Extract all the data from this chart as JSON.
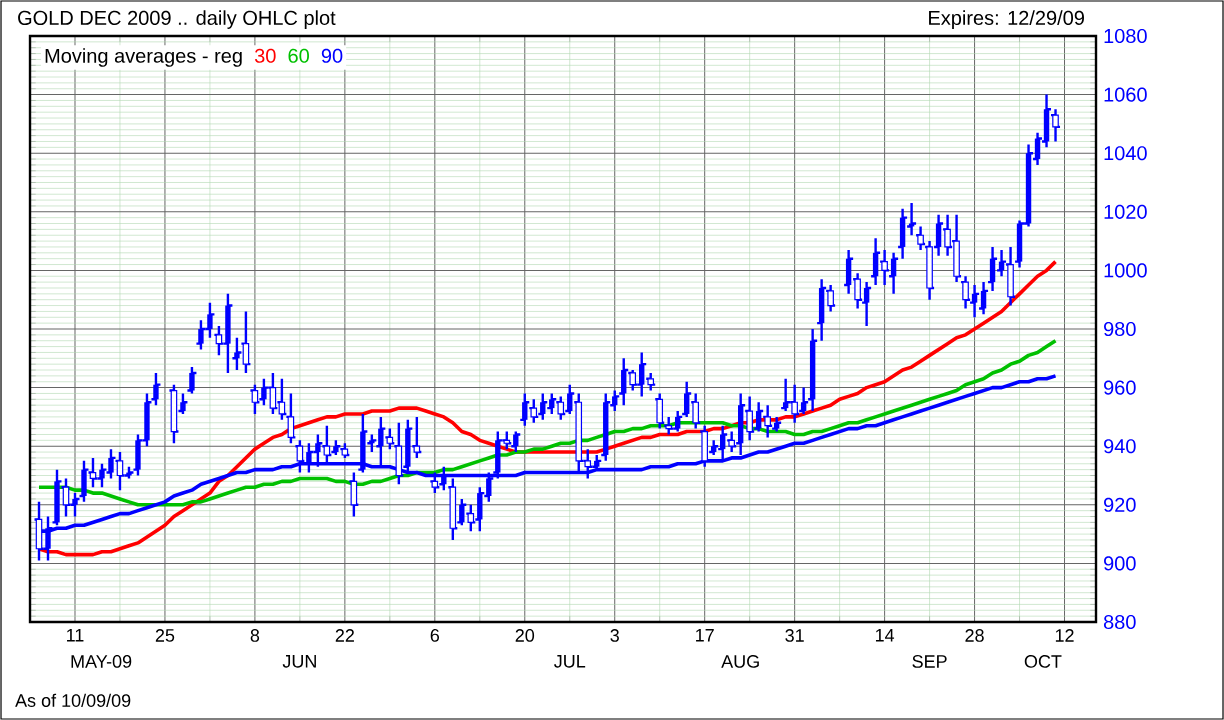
{
  "chart_data": {
    "type": "candlestick",
    "title": "GOLD DEC 2009 .. daily OHLC plot",
    "subtitle": "Expires: 12/29/09",
    "legend_title": "Moving averages - reg",
    "legend": "top left",
    "grid": true,
    "color": "#0000ff",
    "annotations": [
      "MAY-09",
      "JUN",
      "JUL",
      "AUG",
      "SEP",
      "OCT",
      "As of 10/09/09"
    ],
    "ylim": [
      880,
      1080
    ],
    "yticks": [
      880,
      900,
      920,
      940,
      960,
      980,
      1000,
      1020,
      1040,
      1060,
      1080
    ],
    "categories": [
      null,
      null,
      null,
      null,
      "11",
      null,
      null,
      null,
      null,
      null,
      null,
      null,
      null,
      null,
      "25",
      null,
      null,
      null,
      null,
      null,
      null,
      null,
      null,
      null,
      "8",
      null,
      null,
      null,
      null,
      null,
      null,
      null,
      null,
      null,
      "22",
      null,
      null,
      null,
      null,
      null,
      null,
      null,
      null,
      null,
      "6",
      null,
      null,
      null,
      null,
      null,
      null,
      null,
      null,
      null,
      "20",
      null,
      null,
      null,
      null,
      null,
      null,
      null,
      null,
      null,
      "3",
      null,
      null,
      null,
      null,
      null,
      null,
      null,
      null,
      null,
      "17",
      null,
      null,
      null,
      null,
      null,
      null,
      null,
      null,
      null,
      "31",
      null,
      null,
      null,
      null,
      null,
      null,
      null,
      null,
      null,
      "14",
      null,
      null,
      null,
      null,
      null,
      null,
      null,
      null,
      null,
      "28",
      null,
      null,
      null,
      null,
      null,
      null,
      null,
      null,
      null,
      "12"
    ],
    "ohlc": [
      [
        915,
        921,
        901,
        905
      ],
      [
        905,
        916,
        901,
        912
      ],
      [
        914,
        932,
        913,
        928
      ],
      [
        926,
        929,
        916,
        920
      ],
      [
        920,
        924,
        916,
        922
      ],
      [
        923,
        935,
        921,
        932
      ],
      [
        931,
        936,
        926,
        929
      ],
      [
        929,
        934,
        926,
        932
      ],
      [
        931,
        939,
        929,
        936
      ],
      [
        935,
        938,
        925,
        930
      ],
      [
        930,
        933,
        929,
        931
      ],
      [
        932,
        944,
        930,
        942
      ],
      [
        942,
        958,
        940,
        955
      ],
      [
        956,
        965,
        954,
        961
      ],
      null,
      [
        959,
        961,
        941,
        945
      ],
      [
        952,
        958,
        951,
        955
      ],
      [
        959,
        967,
        958,
        965
      ],
      [
        975,
        983,
        973,
        980
      ],
      [
        980,
        989,
        977,
        985
      ],
      [
        978,
        981,
        971,
        975
      ],
      [
        975,
        992,
        965,
        988
      ],
      [
        970,
        977,
        966,
        972
      ],
      [
        975,
        986,
        965,
        968
      ],
      [
        959,
        961,
        951,
        955
      ],
      [
        956,
        963,
        954,
        960
      ],
      [
        960,
        965,
        951,
        953
      ],
      [
        955,
        963,
        949,
        951
      ],
      [
        950,
        958,
        941,
        943
      ],
      [
        940,
        942,
        931,
        935
      ],
      [
        934,
        941,
        931,
        938
      ],
      [
        938,
        944,
        933,
        941
      ],
      [
        940,
        947,
        934,
        937
      ],
      [
        938,
        942,
        937,
        940
      ],
      [
        939,
        941,
        936,
        937
      ],
      [
        928,
        931,
        916,
        920
      ],
      [
        932,
        951,
        931,
        945
      ],
      [
        941,
        944,
        938,
        942
      ],
      [
        940,
        950,
        933,
        946
      ],
      [
        943,
        946,
        939,
        941
      ],
      [
        940,
        948,
        927,
        930
      ],
      [
        933,
        949,
        931,
        946
      ],
      [
        940,
        950,
        936,
        938
      ],
      null,
      [
        928,
        931,
        924,
        926
      ],
      [
        927,
        933,
        925,
        930
      ],
      [
        926,
        929,
        908,
        912
      ],
      [
        914,
        922,
        913,
        920
      ],
      [
        917,
        920,
        911,
        914
      ],
      [
        915,
        926,
        911,
        924
      ],
      [
        923,
        931,
        921,
        929
      ],
      [
        931,
        945,
        929,
        942
      ],
      [
        942,
        945,
        939,
        941
      ],
      [
        940,
        945,
        938,
        944
      ],
      [
        949,
        958,
        947,
        955
      ],
      [
        953,
        956,
        948,
        950
      ],
      [
        951,
        958,
        949,
        955
      ],
      [
        953,
        958,
        951,
        956
      ],
      [
        955,
        957,
        949,
        951
      ],
      [
        952,
        961,
        951,
        958
      ],
      [
        955,
        958,
        931,
        935
      ],
      [
        935,
        939,
        929,
        933
      ],
      [
        933,
        937,
        932,
        935
      ],
      [
        937,
        958,
        935,
        955
      ],
      [
        954,
        959,
        952,
        957
      ],
      [
        958,
        970,
        954,
        966
      ],
      [
        965,
        966,
        959,
        961
      ],
      [
        961,
        972,
        957,
        968
      ],
      [
        963,
        965,
        959,
        961
      ],
      [
        956,
        958,
        946,
        948
      ],
      [
        947,
        950,
        944,
        946
      ],
      [
        946,
        952,
        945,
        950
      ],
      [
        951,
        962,
        950,
        958
      ],
      [
        955,
        958,
        946,
        948
      ],
      [
        945,
        947,
        933,
        935
      ],
      [
        938,
        942,
        937,
        940
      ],
      [
        939,
        947,
        935,
        944
      ],
      [
        942,
        945,
        938,
        940
      ],
      [
        941,
        958,
        937,
        954
      ],
      [
        952,
        957,
        942,
        945
      ],
      [
        946,
        955,
        945,
        952
      ],
      [
        950,
        954,
        943,
        947
      ],
      [
        946,
        950,
        945,
        948
      ],
      [
        953,
        963,
        952,
        955
      ],
      [
        955,
        961,
        948,
        951
      ],
      [
        952,
        960,
        951,
        955
      ],
      [
        956,
        980,
        952,
        976
      ],
      [
        982,
        997,
        976,
        994
      ],
      [
        993,
        995,
        986,
        988
      ],
      null,
      [
        995,
        1007,
        992,
        1004
      ],
      [
        997,
        999,
        987,
        990
      ],
      [
        989,
        996,
        981,
        994
      ],
      [
        998,
        1011,
        995,
        1006
      ],
      [
        1003,
        1007,
        995,
        1000
      ],
      [
        998,
        1006,
        992,
        1004
      ],
      [
        1008,
        1021,
        1004,
        1018
      ],
      [
        1015,
        1023,
        1012,
        1016
      ],
      [
        1012,
        1015,
        1007,
        1009
      ],
      [
        1008,
        1010,
        990,
        994
      ],
      [
        1008,
        1019,
        1005,
        1016
      ],
      [
        1014,
        1019,
        1005,
        1008
      ],
      [
        1010,
        1019,
        996,
        998
      ],
      [
        996,
        998,
        987,
        990
      ],
      [
        989,
        995,
        984,
        992
      ],
      [
        987,
        996,
        985,
        993
      ],
      [
        996,
        1008,
        993,
        1004
      ],
      [
        1000,
        1007,
        998,
        1003
      ],
      [
        1002,
        1008,
        988,
        991
      ],
      [
        1003,
        1017,
        1001,
        1016
      ],
      [
        1016,
        1043,
        1015,
        1040
      ],
      [
        1038,
        1047,
        1036,
        1045
      ],
      [
        1044,
        1060,
        1042,
        1055
      ],
      [
        1053,
        1055,
        1044,
        1049
      ],
      null
    ],
    "series": [
      {
        "name": "30",
        "type": "line",
        "color": "#ff0000",
        "values": [
          905,
          904,
          904,
          903,
          903,
          903,
          903,
          904,
          904,
          905,
          906,
          907,
          909,
          911,
          913,
          916,
          918,
          920,
          922,
          924,
          928,
          930,
          933,
          936,
          939,
          941,
          943,
          944,
          946,
          947,
          948,
          949,
          950,
          950,
          951,
          951,
          951,
          952,
          952,
          952,
          953,
          953,
          953,
          952,
          951,
          950,
          948,
          945,
          944,
          942,
          941,
          940,
          939,
          938,
          938,
          938,
          938,
          938,
          938,
          938,
          938,
          938,
          938,
          939,
          940,
          941,
          942,
          943,
          943,
          944,
          944,
          944,
          945,
          945,
          945,
          946,
          946,
          947,
          948,
          948,
          949,
          949,
          949,
          950,
          950,
          951,
          952,
          953,
          954,
          956,
          957,
          958,
          960,
          961,
          962,
          964,
          966,
          967,
          969,
          971,
          973,
          975,
          977,
          978,
          980,
          982,
          984,
          986,
          989,
          992,
          995,
          998,
          1000,
          1003,
          null
        ]
      },
      {
        "name": "60",
        "type": "line",
        "color": "#00c000",
        "values": [
          926,
          926,
          926,
          926,
          925,
          925,
          924,
          924,
          923,
          922,
          921,
          920,
          920,
          920,
          920,
          920,
          920,
          921,
          921,
          922,
          923,
          924,
          925,
          926,
          926,
          927,
          927,
          928,
          928,
          929,
          929,
          929,
          929,
          928,
          928,
          927,
          927,
          928,
          928,
          929,
          930,
          930,
          931,
          931,
          931,
          932,
          932,
          933,
          934,
          935,
          936,
          937,
          937,
          938,
          938,
          939,
          939,
          940,
          941,
          941,
          942,
          942,
          943,
          944,
          945,
          945,
          946,
          946,
          947,
          947,
          947,
          948,
          948,
          948,
          948,
          948,
          948,
          947,
          947,
          946,
          946,
          945,
          945,
          945,
          944,
          944,
          945,
          945,
          946,
          947,
          948,
          948,
          949,
          950,
          951,
          952,
          953,
          954,
          955,
          956,
          957,
          958,
          959,
          961,
          962,
          963,
          965,
          966,
          968,
          969,
          971,
          972,
          974,
          976,
          null
        ]
      },
      {
        "name": "90",
        "type": "line",
        "color": "#0000ff",
        "values": [
          911,
          911,
          912,
          912,
          913,
          913,
          914,
          915,
          916,
          917,
          917,
          918,
          919,
          920,
          921,
          923,
          924,
          925,
          927,
          928,
          929,
          930,
          931,
          931,
          932,
          932,
          932,
          933,
          933,
          934,
          934,
          934,
          934,
          934,
          934,
          934,
          934,
          933,
          933,
          933,
          932,
          931,
          931,
          930,
          930,
          930,
          930,
          930,
          930,
          930,
          930,
          930,
          930,
          930,
          931,
          931,
          931,
          931,
          931,
          931,
          931,
          931,
          932,
          932,
          932,
          932,
          932,
          932,
          933,
          933,
          933,
          934,
          934,
          934,
          935,
          935,
          935,
          936,
          936,
          937,
          938,
          938,
          939,
          940,
          941,
          941,
          942,
          943,
          944,
          945,
          946,
          946,
          947,
          947,
          948,
          949,
          950,
          951,
          952,
          953,
          954,
          955,
          956,
          957,
          958,
          959,
          960,
          960,
          961,
          962,
          962,
          963,
          963,
          964,
          null
        ]
      }
    ]
  }
}
